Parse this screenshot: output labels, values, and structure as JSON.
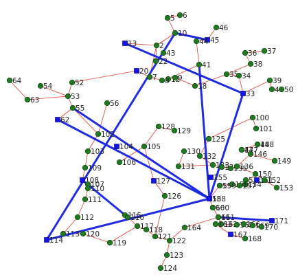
{
  "colors": {
    "background": "#ffffff",
    "branch_line": "#e33a2e",
    "tie_line": "#1f2be0",
    "bus_node": "#1f7a22",
    "source_node": "#1414e6"
  },
  "nodes": [
    {
      "id": "5"
    },
    {
      "id": "6"
    },
    {
      "id": "10"
    },
    {
      "id": "13"
    },
    {
      "id": "2"
    },
    {
      "id": "46"
    },
    {
      "id": "45"
    },
    {
      "id": "44"
    },
    {
      "id": "43"
    },
    {
      "id": "22"
    },
    {
      "id": "41"
    },
    {
      "id": "36"
    },
    {
      "id": "37"
    },
    {
      "id": "38"
    },
    {
      "id": "39"
    },
    {
      "id": "40"
    },
    {
      "id": "35"
    },
    {
      "id": "34"
    },
    {
      "id": "33"
    },
    {
      "id": "50"
    },
    {
      "id": "48"
    },
    {
      "id": "47"
    },
    {
      "id": "20"
    },
    {
      "id": "52"
    },
    {
      "id": "54"
    },
    {
      "id": "64"
    },
    {
      "id": "63"
    },
    {
      "id": "53"
    },
    {
      "id": "55"
    },
    {
      "id": "62"
    },
    {
      "id": "56"
    },
    {
      "id": "57"
    },
    {
      "id": "58"
    },
    {
      "id": "60"
    },
    {
      "id": "59"
    },
    {
      "id": "61"
    },
    {
      "id": "102"
    },
    {
      "id": "103"
    },
    {
      "id": "104"
    },
    {
      "id": "105"
    },
    {
      "id": "106"
    },
    {
      "id": "109"
    },
    {
      "id": "108"
    },
    {
      "id": "107"
    },
    {
      "id": "110"
    },
    {
      "id": "111"
    },
    {
      "id": "112"
    },
    {
      "id": "113"
    },
    {
      "id": "114"
    },
    {
      "id": "115"
    },
    {
      "id": "116"
    },
    {
      "id": "117"
    },
    {
      "id": "118"
    },
    {
      "id": "119"
    },
    {
      "id": "120"
    },
    {
      "id": "121"
    },
    {
      "id": "122"
    },
    {
      "id": "123"
    },
    {
      "id": "124"
    },
    {
      "id": "125"
    },
    {
      "id": "126"
    },
    {
      "id": "127"
    },
    {
      "id": "128"
    },
    {
      "id": "129"
    },
    {
      "id": "130"
    },
    {
      "id": "131"
    },
    {
      "id": "132"
    },
    {
      "id": "133"
    },
    {
      "id": "134"
    },
    {
      "id": "135"
    },
    {
      "id": "136"
    },
    {
      "id": "146"
    },
    {
      "id": "147"
    },
    {
      "id": "148"
    },
    {
      "id": "149"
    },
    {
      "id": "150"
    },
    {
      "id": "151"
    },
    {
      "id": "152"
    },
    {
      "id": "153"
    },
    {
      "id": "154"
    },
    {
      "id": "155"
    },
    {
      "id": "156"
    },
    {
      "id": "157"
    },
    {
      "id": "158"
    },
    {
      "id": "159"
    },
    {
      "id": "160"
    },
    {
      "id": "161"
    },
    {
      "id": "162"
    },
    {
      "id": "163"
    },
    {
      "id": "164"
    },
    {
      "id": "165"
    },
    {
      "id": "166"
    },
    {
      "id": "167"
    },
    {
      "id": "168"
    },
    {
      "id": "169"
    },
    {
      "id": "170"
    },
    {
      "id": "171"
    },
    {
      "id": "100"
    },
    {
      "id": "101"
    },
    {
      "id": "18"
    },
    {
      "id": "12"
    },
    {
      "id": "7"
    },
    {
      "id": "8"
    },
    {
      "id": "9"
    }
  ]
}
